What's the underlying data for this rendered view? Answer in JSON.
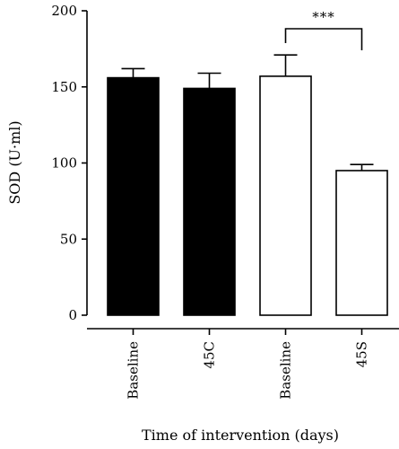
{
  "chart_data": {
    "type": "bar",
    "title": "",
    "xlabel": "Time of intervention (days)",
    "ylabel": "SOD (U·ml)",
    "ylim": [
      0,
      200
    ],
    "yticks": [
      0,
      50,
      100,
      150,
      200
    ],
    "grid": false,
    "legend": "none",
    "categories": [
      "Baseline",
      "45C",
      "Baseline",
      "45S"
    ],
    "values": [
      156,
      149,
      157,
      95
    ],
    "errors": [
      6,
      10,
      14,
      4
    ],
    "bar_fills": [
      "#000000",
      "#000000",
      "#ffffff",
      "#ffffff"
    ],
    "significance": {
      "from_index": 2,
      "to_index": 3,
      "label": "***"
    }
  }
}
